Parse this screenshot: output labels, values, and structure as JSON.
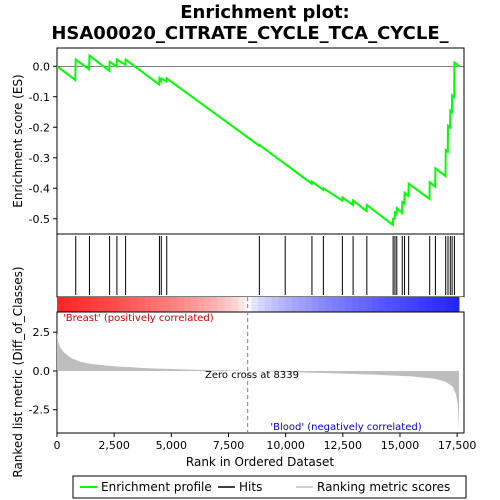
{
  "chart_data": {
    "type": "line",
    "title_line1": "Enrichment plot:",
    "title_line2": "HSA00020_CITRATE_CYCLE_TCA_CYCLE_",
    "xlabel": "Rank in Ordered Dataset",
    "ylabel_top": "Enrichment score (ES)",
    "ylabel_bottom": "Ranked list metric (Diff_of_Classes)",
    "xlim": [
      0,
      17800
    ],
    "x_ticks": [
      {
        "value": 0,
        "label": "0"
      },
      {
        "value": 2500,
        "label": "2,500"
      },
      {
        "value": 5000,
        "label": "5,000"
      },
      {
        "value": 7500,
        "label": "7,500"
      },
      {
        "value": 10000,
        "label": "10,000"
      },
      {
        "value": 12500,
        "label": "12,500"
      },
      {
        "value": 15000,
        "label": "15,000"
      },
      {
        "value": 17500,
        "label": "17,500"
      }
    ],
    "es_ylim": [
      -0.55,
      0.06
    ],
    "es_y_ticks": [
      {
        "value": 0.0,
        "label": "0.0"
      },
      {
        "value": -0.1,
        "label": "-0.1"
      },
      {
        "value": -0.2,
        "label": "-0.2"
      },
      {
        "value": -0.3,
        "label": "-0.3"
      },
      {
        "value": -0.4,
        "label": "-0.4"
      },
      {
        "value": -0.5,
        "label": "-0.5"
      }
    ],
    "metric_ylim": [
      -4.0,
      3.8
    ],
    "metric_y_ticks": [
      {
        "value": 2.5,
        "label": "2.5"
      },
      {
        "value": 0.0,
        "label": "0.0"
      },
      {
        "value": -2.5,
        "label": "-2.5"
      }
    ],
    "hits": [
      820,
      1420,
      2300,
      2620,
      3000,
      4480,
      4560,
      4800,
      8850,
      9980,
      11150,
      11650,
      12480,
      12950,
      13550,
      14700,
      14780,
      14860,
      15100,
      15200,
      15380,
      16300,
      16550,
      17000,
      17100,
      17200,
      17280,
      17380
    ],
    "es_curve": [
      {
        "x": 0,
        "y": 0.0
      },
      {
        "x": 800,
        "y": -0.045
      },
      {
        "x": 820,
        "y": 0.022
      },
      {
        "x": 1400,
        "y": -0.01
      },
      {
        "x": 1420,
        "y": 0.035
      },
      {
        "x": 2290,
        "y": -0.015
      },
      {
        "x": 2300,
        "y": 0.015
      },
      {
        "x": 2600,
        "y": 0.0
      },
      {
        "x": 2620,
        "y": 0.022
      },
      {
        "x": 2990,
        "y": 0.005
      },
      {
        "x": 3000,
        "y": 0.022
      },
      {
        "x": 4470,
        "y": -0.06
      },
      {
        "x": 4480,
        "y": -0.04
      },
      {
        "x": 4550,
        "y": -0.048
      },
      {
        "x": 4560,
        "y": -0.04
      },
      {
        "x": 4790,
        "y": -0.05
      },
      {
        "x": 4800,
        "y": -0.04
      },
      {
        "x": 8840,
        "y": -0.26
      },
      {
        "x": 8850,
        "y": -0.258
      },
      {
        "x": 9970,
        "y": -0.32
      },
      {
        "x": 9980,
        "y": -0.32
      },
      {
        "x": 11140,
        "y": -0.385
      },
      {
        "x": 11150,
        "y": -0.378
      },
      {
        "x": 11640,
        "y": -0.405
      },
      {
        "x": 11650,
        "y": -0.4
      },
      {
        "x": 12470,
        "y": -0.44
      },
      {
        "x": 12480,
        "y": -0.43
      },
      {
        "x": 12940,
        "y": -0.455
      },
      {
        "x": 12950,
        "y": -0.44
      },
      {
        "x": 13540,
        "y": -0.475
      },
      {
        "x": 13550,
        "y": -0.455
      },
      {
        "x": 14690,
        "y": -0.52
      },
      {
        "x": 14700,
        "y": -0.5
      },
      {
        "x": 14770,
        "y": -0.5
      },
      {
        "x": 14780,
        "y": -0.48
      },
      {
        "x": 14850,
        "y": -0.485
      },
      {
        "x": 14860,
        "y": -0.465
      },
      {
        "x": 15090,
        "y": -0.48
      },
      {
        "x": 15100,
        "y": -0.445
      },
      {
        "x": 15190,
        "y": -0.45
      },
      {
        "x": 15200,
        "y": -0.415
      },
      {
        "x": 15370,
        "y": -0.425
      },
      {
        "x": 15380,
        "y": -0.385
      },
      {
        "x": 16290,
        "y": -0.435
      },
      {
        "x": 16300,
        "y": -0.38
      },
      {
        "x": 16540,
        "y": -0.395
      },
      {
        "x": 16550,
        "y": -0.335
      },
      {
        "x": 16990,
        "y": -0.36
      },
      {
        "x": 17000,
        "y": -0.275
      },
      {
        "x": 17090,
        "y": -0.28
      },
      {
        "x": 17100,
        "y": -0.195
      },
      {
        "x": 17190,
        "y": -0.2
      },
      {
        "x": 17200,
        "y": -0.145
      },
      {
        "x": 17270,
        "y": -0.15
      },
      {
        "x": 17280,
        "y": -0.095
      },
      {
        "x": 17370,
        "y": -0.1
      },
      {
        "x": 17380,
        "y": 0.012
      },
      {
        "x": 17600,
        "y": 0.0
      }
    ],
    "metric_curve": [
      {
        "x": 0,
        "y": 2.5
      },
      {
        "x": 50,
        "y": 1.9
      },
      {
        "x": 150,
        "y": 1.5
      },
      {
        "x": 300,
        "y": 1.2
      },
      {
        "x": 600,
        "y": 0.85
      },
      {
        "x": 1000,
        "y": 0.6
      },
      {
        "x": 1500,
        "y": 0.45
      },
      {
        "x": 2500,
        "y": 0.3
      },
      {
        "x": 4000,
        "y": 0.18
      },
      {
        "x": 6000,
        "y": 0.08
      },
      {
        "x": 8339,
        "y": 0.0
      },
      {
        "x": 10000,
        "y": -0.07
      },
      {
        "x": 12000,
        "y": -0.15
      },
      {
        "x": 14000,
        "y": -0.25
      },
      {
        "x": 15500,
        "y": -0.35
      },
      {
        "x": 16500,
        "y": -0.5
      },
      {
        "x": 17000,
        "y": -0.7
      },
      {
        "x": 17300,
        "y": -1.0
      },
      {
        "x": 17450,
        "y": -1.5
      },
      {
        "x": 17530,
        "y": -2.2
      },
      {
        "x": 17580,
        "y": -3.7
      }
    ],
    "zero_cross_rank": 8339,
    "zero_cross_label": "Zero cross at 8339",
    "pos_label": "'Breast' (positively correlated)",
    "neg_label": "'Blood' (negatively correlated)",
    "colors": {
      "es_line": "#00ff00",
      "hit": "#000000",
      "metric_fill": "#bebebe",
      "pos_text": "#cc0000",
      "neg_text": "#0000cc",
      "zero_dash": "#808080"
    },
    "legend": [
      {
        "label": "Enrichment profile",
        "kind": "green-line"
      },
      {
        "label": "Hits",
        "kind": "black-line"
      },
      {
        "label": "Ranking metric scores",
        "kind": "gray-line"
      }
    ]
  }
}
